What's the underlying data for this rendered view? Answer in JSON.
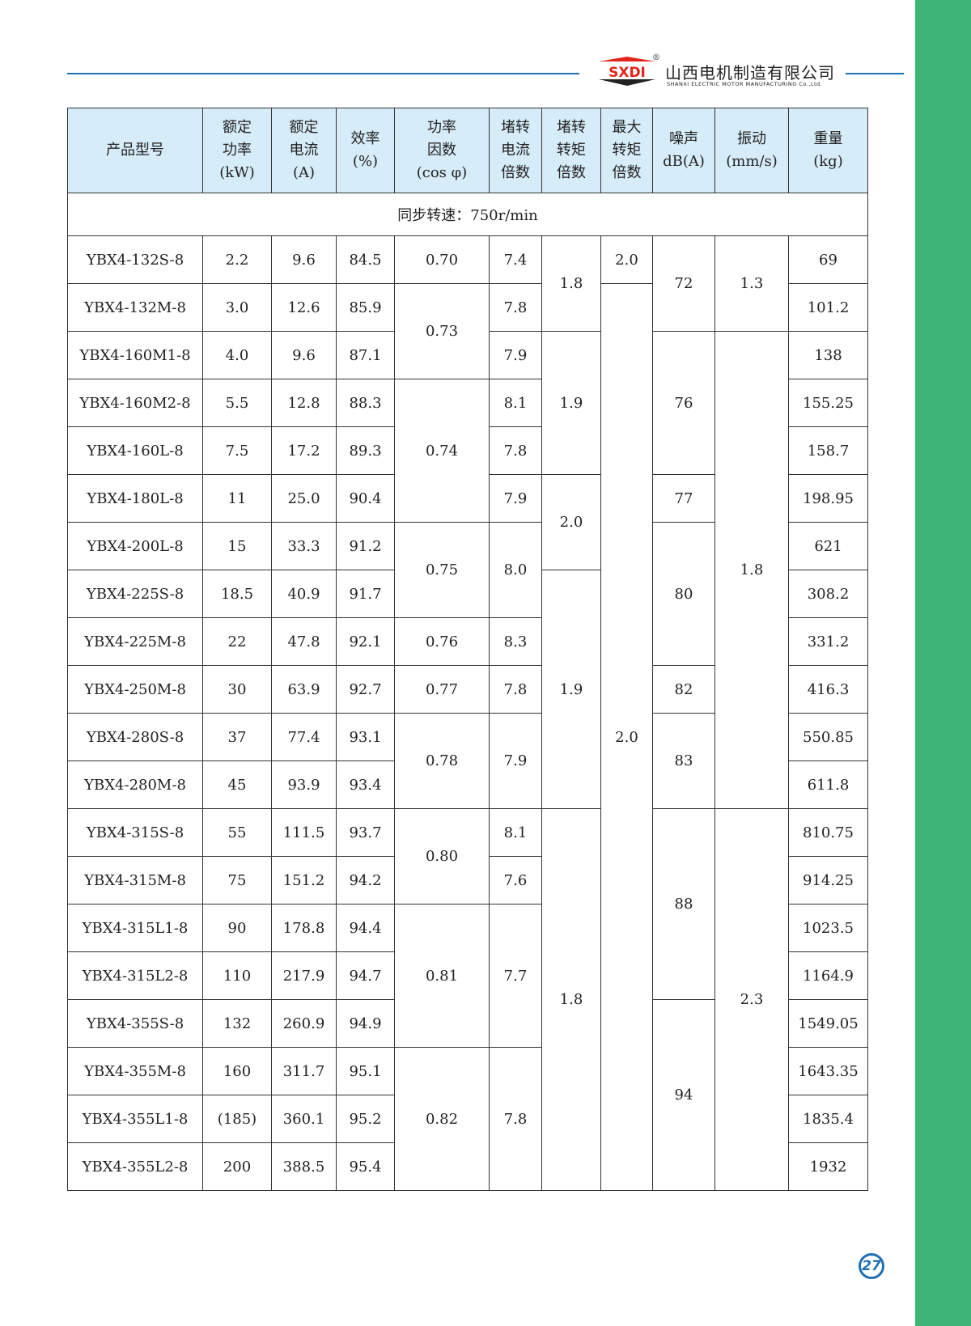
{
  "brand": {
    "logo_text": "SXDI",
    "name_cn": "山西电机制造有限公司",
    "name_en": "SHANXI ELECTRIC MOTOR MANUFACTURING Co.,Ltd.",
    "registered": "®",
    "accent": "#1f6fb5",
    "side_color": "#3db475",
    "logo_red": "#e2231a"
  },
  "table": {
    "headers": [
      "产品型号",
      "额定\n功率\n(kW)",
      "额定\n电流\n(A)",
      "效率\n(%)",
      "功率\n因数\n(cos φ)",
      "堵转\n电流\n倍数",
      "堵转\n转矩\n倍数",
      "最大\n转矩\n倍数",
      "噪声\ndB(A)",
      "振动\n(mm/s)",
      "重量\n(kg)"
    ],
    "sync_speed": "同步转速：750r/min",
    "columns": [
      [
        [
          "YBX4-132S-8",
          1
        ],
        [
          "YBX4-132M-8",
          1
        ],
        [
          "YBX4-160M1-8",
          1
        ],
        [
          "YBX4-160M2-8",
          1
        ],
        [
          "YBX4-160L-8",
          1
        ],
        [
          "YBX4-180L-8",
          1
        ],
        [
          "YBX4-200L-8",
          1
        ],
        [
          "YBX4-225S-8",
          1
        ],
        [
          "YBX4-225M-8",
          1
        ],
        [
          "YBX4-250M-8",
          1
        ],
        [
          "YBX4-280S-8",
          1
        ],
        [
          "YBX4-280M-8",
          1
        ],
        [
          "YBX4-315S-8",
          1
        ],
        [
          "YBX4-315M-8",
          1
        ],
        [
          "YBX4-315L1-8",
          1
        ],
        [
          "YBX4-315L2-8",
          1
        ],
        [
          "YBX4-355S-8",
          1
        ],
        [
          "YBX4-355M-8",
          1
        ],
        [
          "YBX4-355L1-8",
          1
        ],
        [
          "YBX4-355L2-8",
          1
        ]
      ],
      [
        [
          "2.2",
          1
        ],
        [
          "3.0",
          1
        ],
        [
          "4.0",
          1
        ],
        [
          "5.5",
          1
        ],
        [
          "7.5",
          1
        ],
        [
          "11",
          1
        ],
        [
          "15",
          1
        ],
        [
          "18.5",
          1
        ],
        [
          "22",
          1
        ],
        [
          "30",
          1
        ],
        [
          "37",
          1
        ],
        [
          "45",
          1
        ],
        [
          "55",
          1
        ],
        [
          "75",
          1
        ],
        [
          "90",
          1
        ],
        [
          "110",
          1
        ],
        [
          "132",
          1
        ],
        [
          "160",
          1
        ],
        [
          "(185)",
          1
        ],
        [
          "200",
          1
        ]
      ],
      [
        [
          "9.6",
          1
        ],
        [
          "12.6",
          1
        ],
        [
          "9.6",
          1
        ],
        [
          "12.8",
          1
        ],
        [
          "17.2",
          1
        ],
        [
          "25.0",
          1
        ],
        [
          "33.3",
          1
        ],
        [
          "40.9",
          1
        ],
        [
          "47.8",
          1
        ],
        [
          "63.9",
          1
        ],
        [
          "77.4",
          1
        ],
        [
          "93.9",
          1
        ],
        [
          "111.5",
          1
        ],
        [
          "151.2",
          1
        ],
        [
          "178.8",
          1
        ],
        [
          "217.9",
          1
        ],
        [
          "260.9",
          1
        ],
        [
          "311.7",
          1
        ],
        [
          "360.1",
          1
        ],
        [
          "388.5",
          1
        ]
      ],
      [
        [
          "84.5",
          1
        ],
        [
          "85.9",
          1
        ],
        [
          "87.1",
          1
        ],
        [
          "88.3",
          1
        ],
        [
          "89.3",
          1
        ],
        [
          "90.4",
          1
        ],
        [
          "91.2",
          1
        ],
        [
          "91.7",
          1
        ],
        [
          "92.1",
          1
        ],
        [
          "92.7",
          1
        ],
        [
          "93.1",
          1
        ],
        [
          "93.4",
          1
        ],
        [
          "93.7",
          1
        ],
        [
          "94.2",
          1
        ],
        [
          "94.4",
          1
        ],
        [
          "94.7",
          1
        ],
        [
          "94.9",
          1
        ],
        [
          "95.1",
          1
        ],
        [
          "95.2",
          1
        ],
        [
          "95.4",
          1
        ]
      ],
      [
        [
          "0.70",
          1
        ],
        [
          "0.73",
          2
        ],
        [
          "0.74",
          3
        ],
        [
          "0.75",
          2
        ],
        [
          "0.76",
          1
        ],
        [
          "0.77",
          1
        ],
        [
          "0.78",
          2
        ],
        [
          "0.80",
          2
        ],
        [
          "0.81",
          3
        ],
        [
          "0.82",
          3
        ]
      ],
      [
        [
          "7.4",
          1
        ],
        [
          "7.8",
          1
        ],
        [
          "7.9",
          1
        ],
        [
          "8.1",
          1
        ],
        [
          "7.8",
          1
        ],
        [
          "7.9",
          1
        ],
        [
          "8.0",
          2
        ],
        [
          "8.3",
          1
        ],
        [
          "7.8",
          1
        ],
        [
          "7.9",
          2
        ],
        [
          "8.1",
          1
        ],
        [
          "7.6",
          1
        ],
        [
          "7.7",
          3
        ],
        [
          "7.8",
          3
        ]
      ],
      [
        [
          "1.8",
          2
        ],
        [
          "1.9",
          3
        ],
        [
          "2.0",
          2
        ],
        [
          "1.9",
          5
        ],
        [
          "1.8",
          8
        ]
      ],
      [
        [
          "2.0",
          1
        ],
        [
          "2.0",
          19
        ]
      ],
      [
        [
          "72",
          2
        ],
        [
          "76",
          3
        ],
        [
          "77",
          1
        ],
        [
          "80",
          3
        ],
        [
          "82",
          1
        ],
        [
          "83",
          2
        ],
        [
          "88",
          4
        ],
        [
          "94",
          4
        ]
      ],
      [
        [
          "1.3",
          2
        ],
        [
          "1.8",
          10
        ],
        [
          "2.3",
          8
        ]
      ],
      [
        [
          "69",
          1
        ],
        [
          "101.2",
          1
        ],
        [
          "138",
          1
        ],
        [
          "155.25",
          1
        ],
        [
          "158.7",
          1
        ],
        [
          "198.95",
          1
        ],
        [
          "621",
          1
        ],
        [
          "308.2",
          1
        ],
        [
          "331.2",
          1
        ],
        [
          "416.3",
          1
        ],
        [
          "550.85",
          1
        ],
        [
          "611.8",
          1
        ],
        [
          "810.75",
          1
        ],
        [
          "914.25",
          1
        ],
        [
          "1023.5",
          1
        ],
        [
          "1164.9",
          1
        ],
        [
          "1549.05",
          1
        ],
        [
          "1643.35",
          1
        ],
        [
          "1835.4",
          1
        ],
        [
          "1932",
          1
        ]
      ]
    ],
    "column_keys": [
      "model",
      "rated-power",
      "rated-current",
      "efficiency",
      "power-factor",
      "locked-current",
      "locked-torque",
      "max-torque",
      "noise",
      "vibration",
      "weight"
    ]
  },
  "page_number": "27"
}
